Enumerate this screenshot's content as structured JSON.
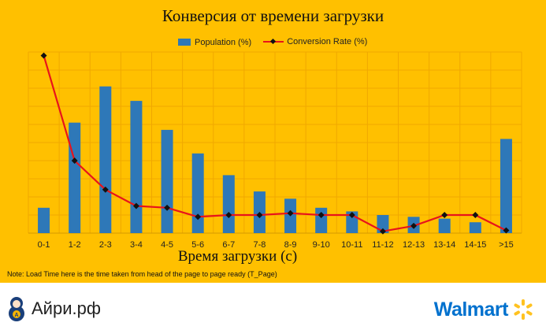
{
  "title": "Конверсия от времени загрузки",
  "legend": {
    "bar_label": "Population (%)",
    "line_label": "Conversion Rate (%)"
  },
  "xlabel": "Время загрузки (с)",
  "note": "Note: Load Time here is the time taken from head of the page to page ready (T_Page)",
  "footer": {
    "left_brand": "Айри.рф",
    "left_icon": "matryoshka-icon",
    "right_brand": "Walmart",
    "right_icon": "spark-icon"
  },
  "colors": {
    "background": "#ffc000",
    "bars": "#2e78b8",
    "line": "#e8131b",
    "markers": "#111111",
    "grid": "#f0a800"
  },
  "chart_data": {
    "type": "bar",
    "categories": [
      "0-1",
      "1-2",
      "2-3",
      "3-4",
      "4-5",
      "5-6",
      "6-7",
      "7-8",
      "8-9",
      "9-10",
      "10-11",
      "11-12",
      "12-13",
      "13-14",
      "14-15",
      ">15"
    ],
    "y_max": 10,
    "grid": true,
    "legend_position": "top",
    "series": [
      {
        "name": "Population (%)",
        "type": "bar",
        "values": [
          1.4,
          6.1,
          8.1,
          7.3,
          5.7,
          4.4,
          3.2,
          2.3,
          1.9,
          1.4,
          1.2,
          1.0,
          0.9,
          0.8,
          0.6,
          5.2
        ]
      },
      {
        "name": "Conversion Rate (%)",
        "type": "line",
        "values": [
          9.8,
          4.0,
          2.4,
          1.5,
          1.4,
          0.9,
          1.0,
          1.0,
          1.1,
          1.0,
          1.0,
          0.1,
          0.4,
          1.0,
          1.0,
          0.15
        ]
      }
    ]
  }
}
